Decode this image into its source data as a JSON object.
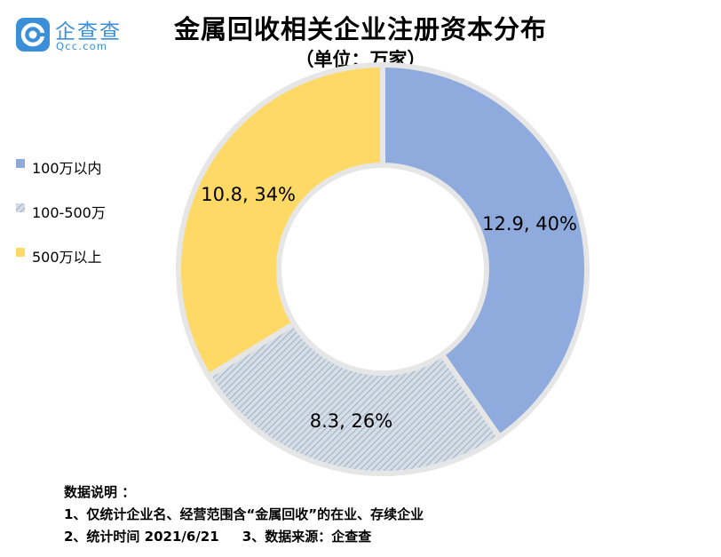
{
  "logo": {
    "cn": "企查查",
    "en": "Qcc.com"
  },
  "title": "金属回收相关企业注册资本分布",
  "subtitle": "（单位：万家）",
  "colors": {
    "s1": "#8faadc",
    "s2": "#d5dde6",
    "s2_line": "#9eb0c2",
    "s3": "#ffd966",
    "logo": "#3a8fd8"
  },
  "chart_data": {
    "type": "pie",
    "variant": "donut",
    "legend_position": "left",
    "series": [
      {
        "name": "100万以内",
        "value": 12.9,
        "percent": "40%",
        "label": "12.9, 40%",
        "pattern": "solid"
      },
      {
        "name": "100-500万",
        "value": 8.3,
        "percent": "26%",
        "label": "8.3, 26%",
        "pattern": "diagonal-hatch"
      },
      {
        "name": "500万以上",
        "value": 10.8,
        "percent": "34%",
        "label": "10.8, 34%",
        "pattern": "solid"
      }
    ]
  },
  "notes": {
    "heading": "数据说明 ：",
    "line1": "1、仅统计企业名、经营范围含“金属回收”的在业、存续企业",
    "line2": "2、统计时间 2021/6/21     3、数据来源：企查查"
  }
}
